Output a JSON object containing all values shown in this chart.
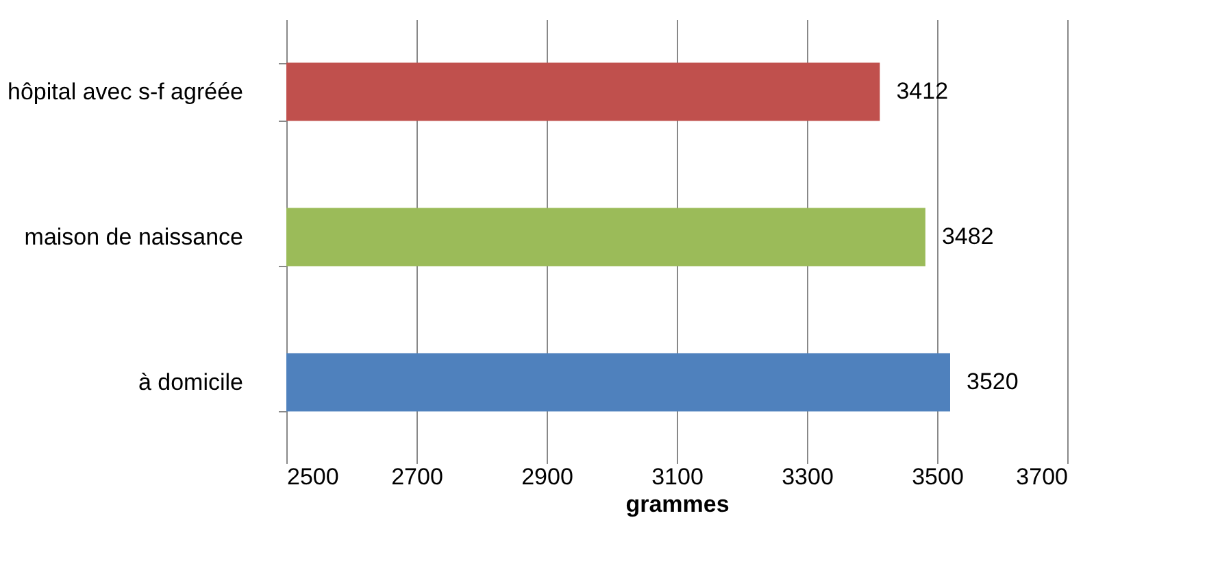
{
  "chart_data": {
    "type": "bar",
    "orientation": "horizontal",
    "xlabel": "grammes",
    "categories": [
      "hôpital avec s-f agréée",
      "maison de naissance",
      "à domicile"
    ],
    "values": [
      3412,
      3482,
      3520
    ],
    "colors": [
      "#c0504d",
      "#9bbb59",
      "#4f81bd"
    ],
    "xlim": [
      2500,
      3700
    ],
    "xticks": [
      2500,
      2700,
      2900,
      3100,
      3300,
      3500,
      3700
    ],
    "grid": "x",
    "data_labels": true,
    "legend": false
  }
}
